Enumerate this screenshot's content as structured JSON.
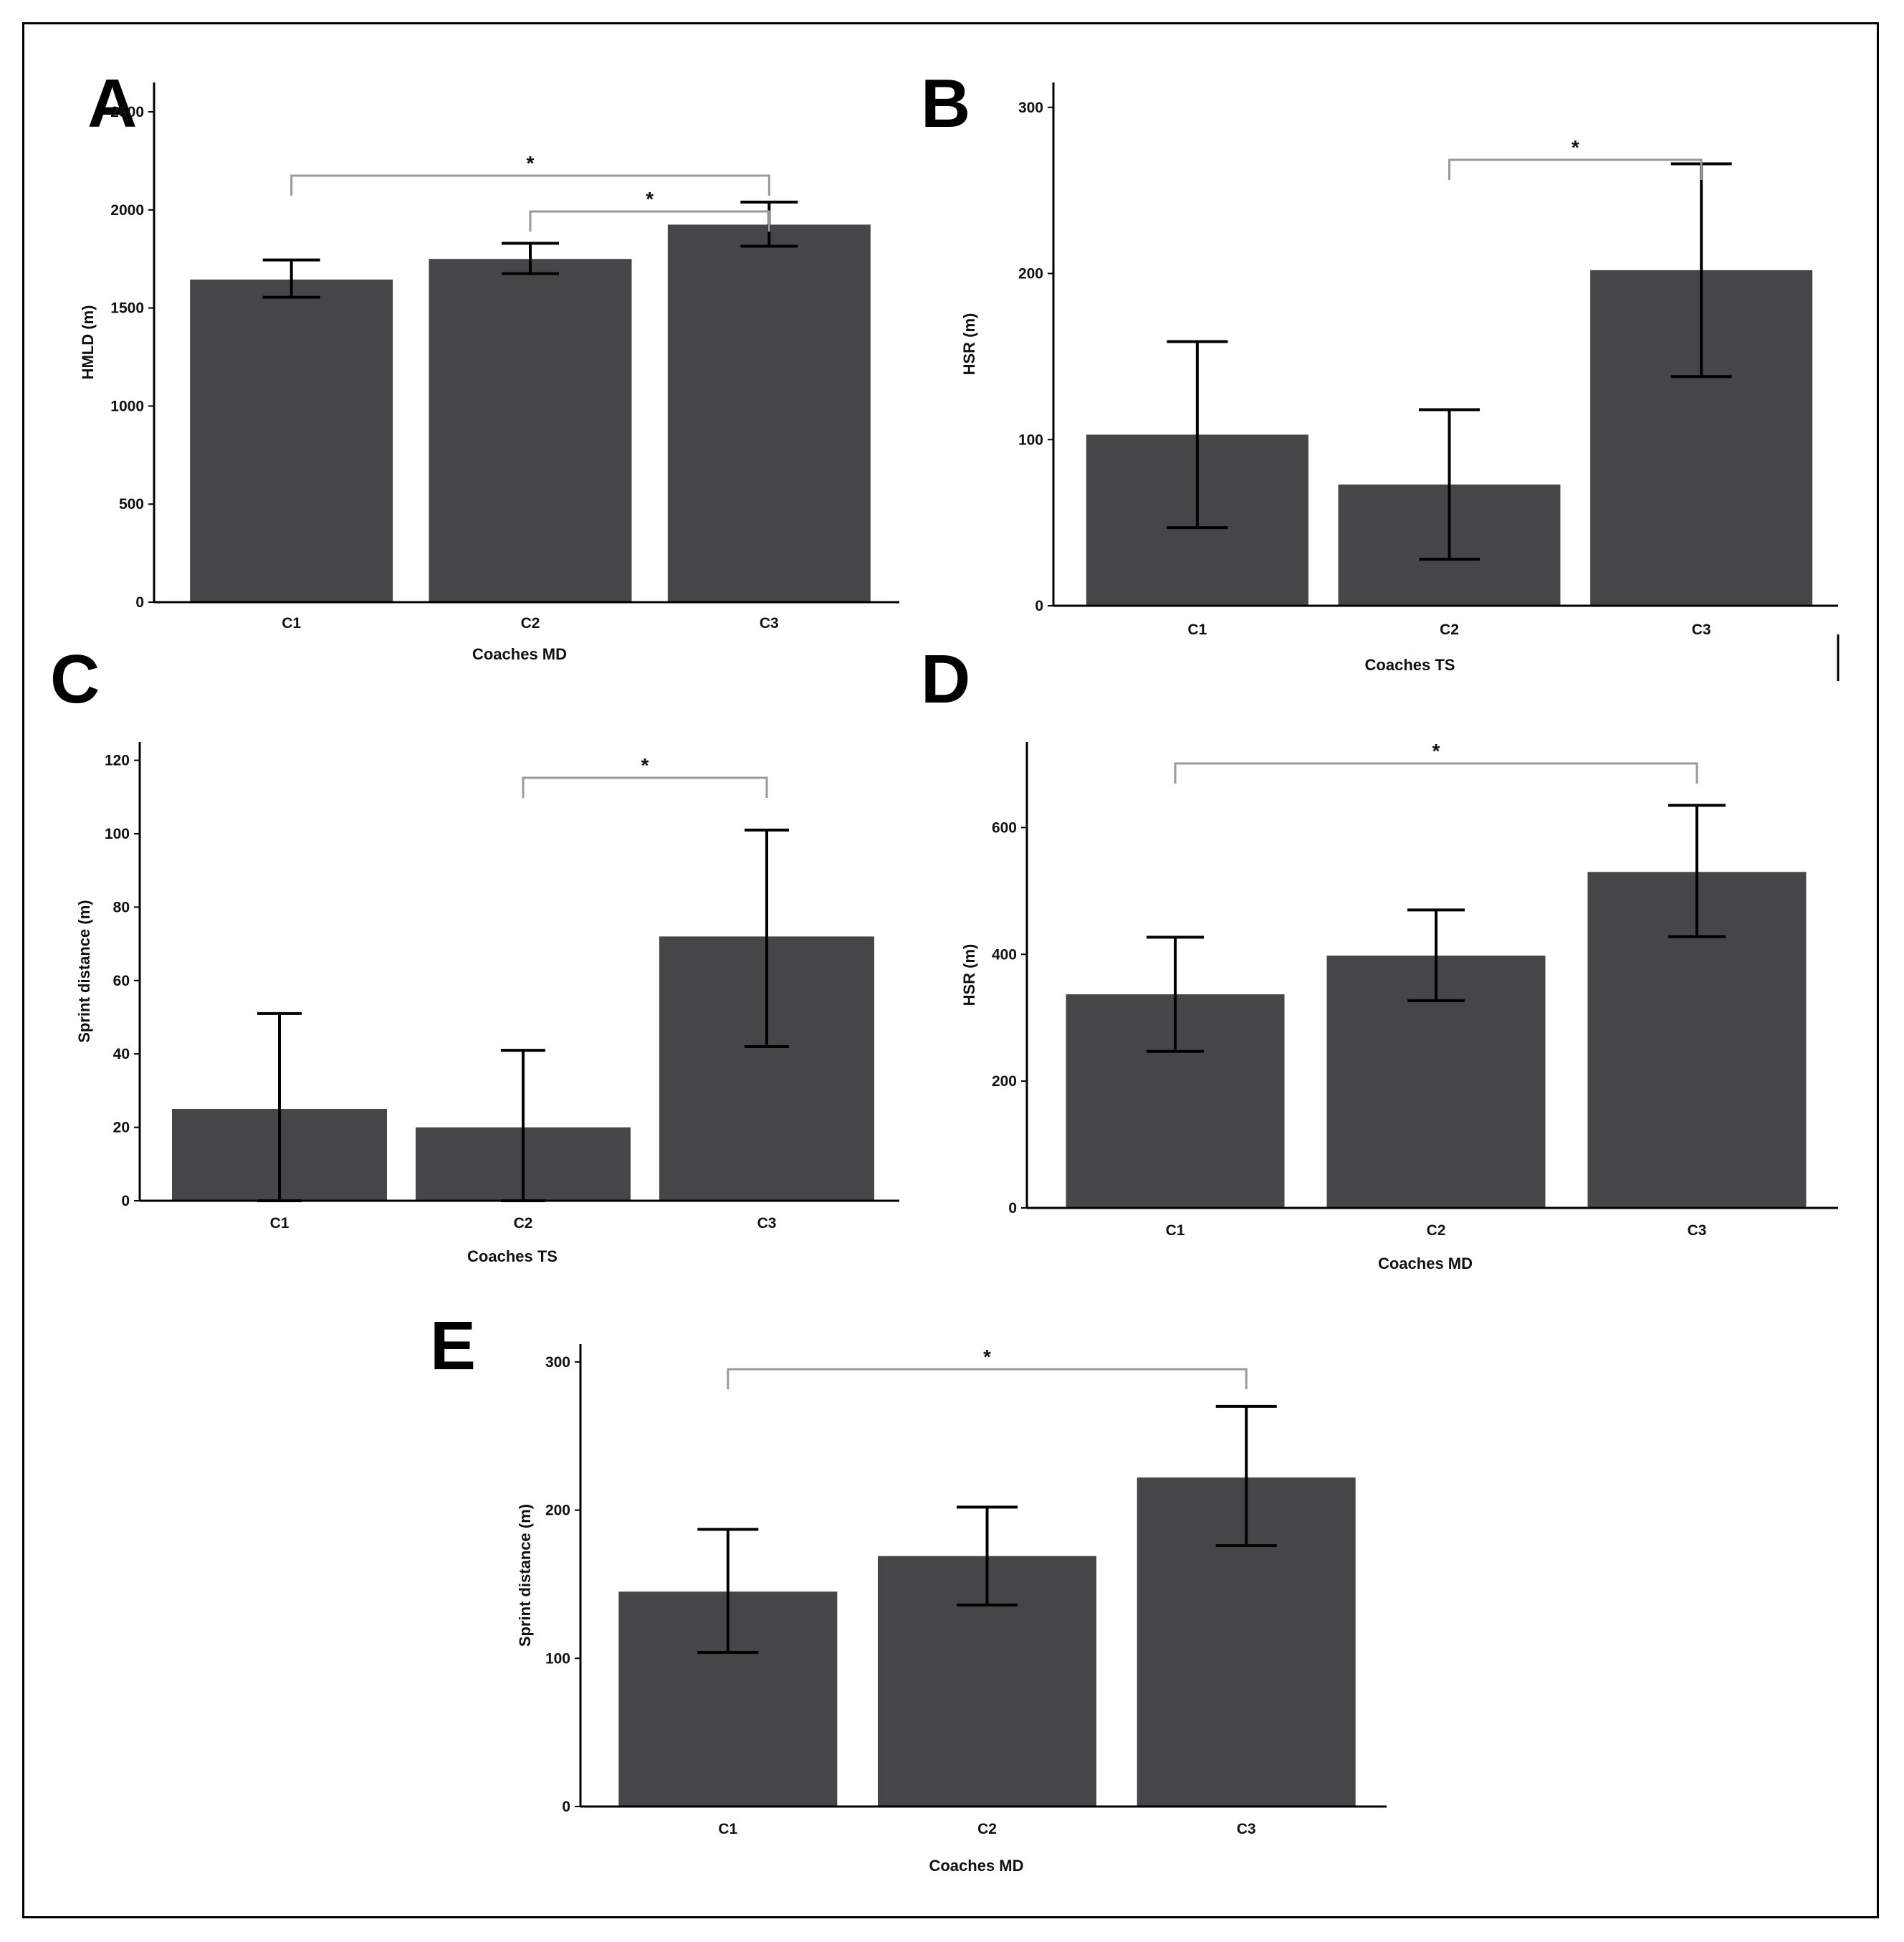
{
  "figure": {
    "colors": {
      "bar": "#454648",
      "axis": "#000000",
      "errorbar": "#000000",
      "bracket": "#9a9a9a",
      "text": "#111111"
    }
  },
  "chart_data": [
    {
      "panel": "A",
      "type": "bar",
      "categories": [
        "C1",
        "C2",
        "C3"
      ],
      "values": [
        1645,
        1750,
        1925
      ],
      "error_low": [
        1555,
        1675,
        1815
      ],
      "error_high": [
        1745,
        1830,
        2040
      ],
      "xlabel": "Coaches MD",
      "ylabel": "HMLD (m)",
      "ylim": [
        0,
        2650
      ],
      "yticks": [
        0,
        500,
        1000,
        1500,
        2000,
        2500
      ],
      "significance": [
        {
          "from": 0,
          "to": 2,
          "label": "*"
        },
        {
          "from": 1,
          "to": 2,
          "label": "*"
        }
      ]
    },
    {
      "panel": "B",
      "type": "bar",
      "categories": [
        "C1",
        "C2",
        "C3"
      ],
      "values": [
        103,
        73,
        202
      ],
      "error_low": [
        47,
        28,
        138
      ],
      "error_high": [
        159,
        118,
        266
      ],
      "xlabel": "Coaches TS",
      "ylabel": "HSR (m)",
      "ylim": [
        0,
        315
      ],
      "yticks": [
        0,
        100,
        200,
        300
      ],
      "significance": [
        {
          "from": 1,
          "to": 2,
          "label": "*"
        }
      ]
    },
    {
      "panel": "C",
      "type": "bar",
      "categories": [
        "C1",
        "C2",
        "C3"
      ],
      "values": [
        25,
        20,
        72
      ],
      "error_low": [
        0,
        0,
        42
      ],
      "error_high": [
        51,
        41,
        101
      ],
      "xlabel": "Coaches TS",
      "ylabel": "Sprint distance (m)",
      "ylim": [
        0,
        125
      ],
      "yticks": [
        0,
        20,
        40,
        60,
        80,
        100,
        120
      ],
      "significance": [
        {
          "from": 1,
          "to": 2,
          "label": "*"
        }
      ]
    },
    {
      "panel": "D",
      "type": "bar",
      "categories": [
        "C1",
        "C2",
        "C3"
      ],
      "values": [
        337,
        398,
        530
      ],
      "error_low": [
        247,
        327,
        428
      ],
      "error_high": [
        427,
        470,
        635
      ],
      "xlabel": "Coaches MD",
      "ylabel": "HSR (m)",
      "ylim": [
        0,
        735
      ],
      "yticks": [
        0,
        200,
        400,
        600
      ],
      "significance": [
        {
          "from": 0,
          "to": 2,
          "label": "*"
        }
      ]
    },
    {
      "panel": "E",
      "type": "bar",
      "categories": [
        "C1",
        "C2",
        "C3"
      ],
      "values": [
        145,
        169,
        222
      ],
      "error_low": [
        104,
        136,
        176
      ],
      "error_high": [
        187,
        202,
        270
      ],
      "xlabel": "Coaches MD",
      "ylabel": "Sprint distance (m)",
      "ylim": [
        0,
        312
      ],
      "yticks": [
        0,
        100,
        200,
        300
      ],
      "significance": [
        {
          "from": 0,
          "to": 2,
          "label": "*"
        }
      ]
    }
  ]
}
